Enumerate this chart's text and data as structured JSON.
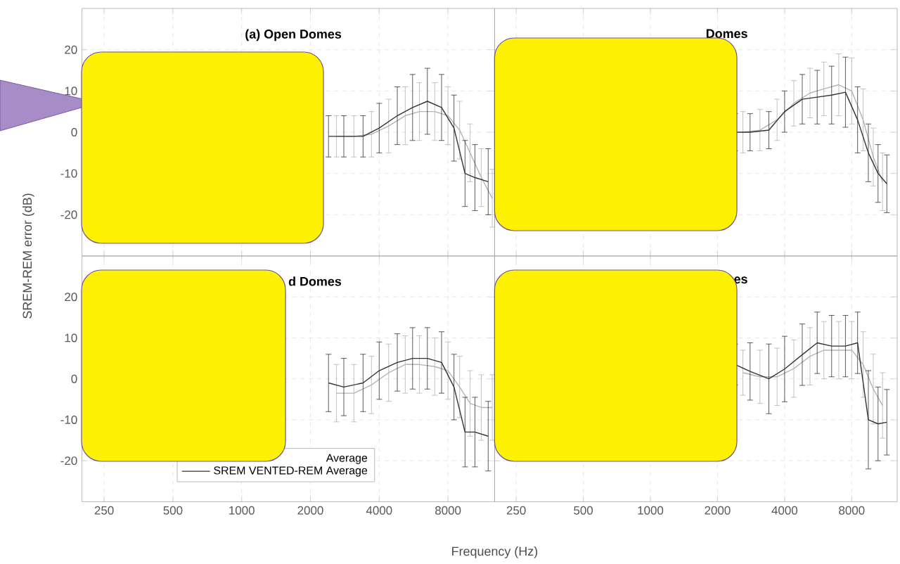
{
  "chart_data": [
    {
      "type": "line",
      "title": "(a) Open Domes",
      "ylabel": "SREM-REM error (dB)",
      "xlim": [
        200,
        12800
      ],
      "ylim": [
        -30,
        30
      ],
      "xticks": [
        250,
        500,
        1000,
        2000,
        4000,
        8000
      ],
      "yticks": [
        -20,
        -10,
        0,
        10,
        20
      ],
      "log": "x",
      "grid": true,
      "marker": "none",
      "tick_labels": "y",
      "series": [
        {
          "color": "#b4b4b4",
          "x": [
            2600,
            3100,
            3700,
            4400,
            5200,
            6000,
            7000,
            8000,
            9000,
            10000,
            11200,
            12500
          ],
          "values": [
            -1,
            -1,
            -0.5,
            1.5,
            4,
            5,
            5,
            4,
            0.5,
            -5,
            -11,
            -16
          ],
          "errors": [
            5,
            5,
            5.5,
            6.5,
            7,
            7,
            7,
            7,
            7,
            7,
            7,
            7
          ]
        },
        {
          "color": "#333333",
          "x": [
            2400,
            2800,
            3400,
            4000,
            4800,
            5600,
            6500,
            7500,
            8500,
            9500,
            10500,
            12000
          ],
          "values": [
            -1,
            -1,
            -1,
            1,
            4,
            6,
            7.5,
            6,
            1,
            -10,
            -11,
            -12
          ],
          "errors": [
            5,
            5,
            5,
            6,
            7,
            8,
            8,
            8,
            8,
            8,
            8,
            8
          ]
        }
      ]
    },
    {
      "type": "line",
      "title": "Domes",
      "xlim": [
        200,
        12800
      ],
      "ylim": [
        -30,
        30
      ],
      "xticks": [
        250,
        500,
        1000,
        2000,
        4000,
        8000
      ],
      "yticks": [
        -20,
        -10,
        0,
        10,
        20
      ],
      "log": "x",
      "grid": true,
      "marker": "none",
      "tick_labels": false,
      "series": [
        {
          "color": "#b4b4b4",
          "x": [
            2600,
            3100,
            3700,
            4400,
            5200,
            6000,
            7000,
            8000,
            9000,
            10000,
            11000
          ],
          "values": [
            0,
            0.5,
            3,
            7,
            9.5,
            10.5,
            11.5,
            10,
            3,
            -6,
            -12
          ],
          "errors": [
            5,
            5,
            5,
            5.5,
            6,
            6.5,
            7.5,
            8,
            7.5,
            7,
            7
          ]
        },
        {
          "color": "#333333",
          "x": [
            2400,
            2800,
            3400,
            4000,
            4800,
            5600,
            6500,
            7500,
            8500,
            9500,
            10500,
            11500
          ],
          "values": [
            0,
            0,
            0.5,
            5,
            8,
            8.5,
            9,
            9.7,
            3,
            -5,
            -10,
            -12.5
          ],
          "errors": [
            4.5,
            4.5,
            4.5,
            5,
            6,
            6.5,
            7,
            8.5,
            8,
            7,
            7,
            7
          ]
        }
      ]
    },
    {
      "type": "line",
      "title": "d Domes",
      "xlabel": "Frequency (Hz)",
      "xlim": [
        200,
        12800
      ],
      "ylim": [
        -30,
        30
      ],
      "xticks": [
        250,
        500,
        1000,
        2000,
        4000,
        8000
      ],
      "yticks": [
        -20,
        -10,
        0,
        10,
        20
      ],
      "log": "x",
      "grid": true,
      "marker": "none",
      "legend": "bottom",
      "series": [
        {
          "name": "Average",
          "color": "#b4b4b4",
          "x": [
            2600,
            3100,
            3700,
            4400,
            5200,
            6000,
            7000,
            8000,
            9000,
            10000,
            11200,
            12500
          ],
          "values": [
            -3.5,
            -3.5,
            -1.5,
            1.5,
            3.5,
            3.5,
            3,
            2,
            -2,
            -6,
            -7,
            -7
          ],
          "errors": [
            7,
            7,
            7,
            7,
            7,
            7,
            7,
            7,
            7.5,
            8,
            8,
            8
          ]
        },
        {
          "name": "SREM VENTED-REM Average",
          "color": "#333333",
          "x": [
            2400,
            2800,
            3400,
            4000,
            4800,
            5600,
            6500,
            7500,
            8500,
            9500,
            10500,
            12000
          ],
          "values": [
            -1,
            -2,
            -1,
            2,
            4,
            5,
            5,
            4,
            -2,
            -13,
            -13,
            -14
          ],
          "errors": [
            7,
            7,
            7,
            7,
            7,
            7.5,
            7.5,
            7.5,
            8,
            8.5,
            8.5,
            8.5
          ]
        }
      ]
    },
    {
      "type": "line",
      "title": "es",
      "xlim": [
        200,
        12800
      ],
      "ylim": [
        -30,
        30
      ],
      "xticks": [
        250,
        500,
        1000,
        2000,
        4000,
        8000
      ],
      "yticks": [
        -20,
        -10,
        0,
        10,
        20
      ],
      "log": "x",
      "grid": true,
      "marker": "none",
      "tick_labels": "x",
      "series": [
        {
          "color": "#b4b4b4",
          "x": [
            2600,
            3100,
            3700,
            4400,
            5200,
            6000,
            7000,
            8000,
            9000,
            10000,
            11000
          ],
          "values": [
            1.5,
            0.5,
            0.5,
            2.5,
            5.5,
            7,
            7,
            7,
            3.5,
            -2.5,
            -6.5
          ],
          "errors": [
            5.5,
            6.5,
            7,
            7,
            7,
            7,
            7,
            7,
            8,
            8.5,
            8
          ]
        },
        {
          "color": "#333333",
          "x": [
            2400,
            2800,
            3400,
            4000,
            4800,
            5600,
            6500,
            7500,
            8500,
            9500,
            10500,
            11500
          ],
          "values": [
            3.5,
            1.8,
            0,
            2.4,
            5.9,
            8.8,
            8,
            8,
            8.8,
            -10,
            -11,
            -10.6
          ],
          "errors": [
            5,
            7,
            8.5,
            8,
            7.5,
            7.5,
            7.5,
            7.5,
            7.5,
            12,
            9,
            8
          ]
        }
      ]
    }
  ]
}
